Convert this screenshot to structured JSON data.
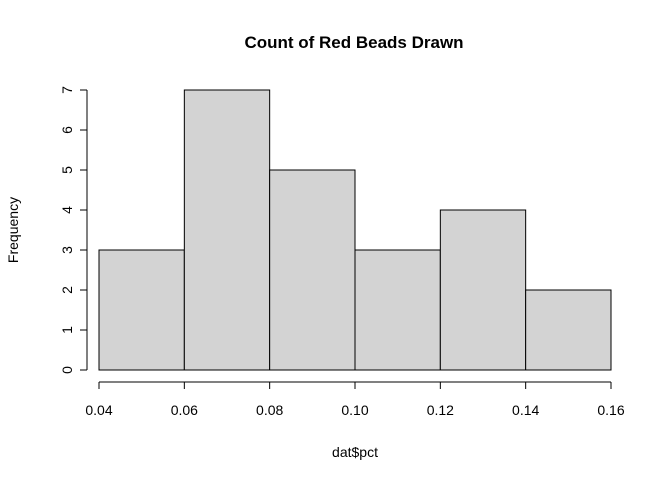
{
  "chart_data": {
    "type": "bar",
    "title": "Count of Red Beads Drawn",
    "xlabel": "dat$pct",
    "ylabel": "Frequency",
    "bins": [
      {
        "from": 0.04,
        "to": 0.06,
        "count": 3
      },
      {
        "from": 0.06,
        "to": 0.08,
        "count": 7
      },
      {
        "from": 0.08,
        "to": 0.1,
        "count": 5
      },
      {
        "from": 0.1,
        "to": 0.12,
        "count": 3
      },
      {
        "from": 0.12,
        "to": 0.14,
        "count": 4
      },
      {
        "from": 0.14,
        "to": 0.16,
        "count": 2
      }
    ],
    "xlim": [
      0.04,
      0.16
    ],
    "ylim": [
      0,
      7
    ],
    "x_ticks": [
      "0.04",
      "0.06",
      "0.08",
      "0.10",
      "0.12",
      "0.14",
      "0.16"
    ],
    "y_ticks": [
      "0",
      "1",
      "2",
      "3",
      "4",
      "5",
      "6",
      "7"
    ],
    "colors": {
      "bar_fill": "#d3d3d3",
      "bar_stroke": "#000000"
    },
    "grid": false,
    "legend": "none"
  }
}
